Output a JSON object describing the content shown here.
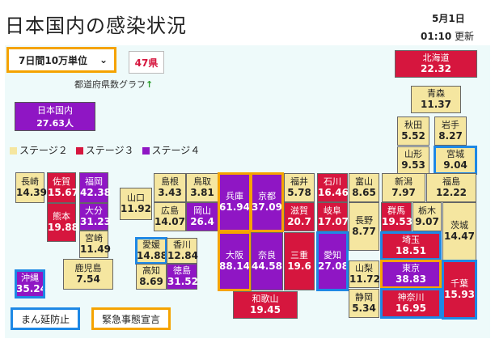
{
  "title": "日本国内の感染状況",
  "date": "5月1日",
  "time": "01:10",
  "updated_suffix": "更新",
  "period_select": "7日間10万単位",
  "pref_count": "47県",
  "graph_link": "都道府県数グラフ",
  "graph_link_arrow": "↑",
  "national": {
    "label": "日本国内",
    "value": "27.63人"
  },
  "legend": [
    {
      "label": "ステージ２",
      "color": "#f5e6a0"
    },
    {
      "label": "ステージ３",
      "color": "#d6163e"
    },
    {
      "label": "ステージ４",
      "color": "#8f16c4"
    }
  ],
  "prefectures": [
    {
      "name": "北海道",
      "value": "22.32",
      "stage": 3
    },
    {
      "name": "青森",
      "value": "11.37",
      "stage": 2
    },
    {
      "name": "秋田",
      "value": "5.52",
      "stage": 2
    },
    {
      "name": "岩手",
      "value": "8.27",
      "stage": 2
    },
    {
      "name": "山形",
      "value": "9.53",
      "stage": 2
    },
    {
      "name": "宮城",
      "value": "9.04",
      "stage": 2
    },
    {
      "name": "長崎",
      "value": "14.39",
      "stage": 2
    },
    {
      "name": "佐賀",
      "value": "15.67",
      "stage": 3
    },
    {
      "name": "福岡",
      "value": "42.38",
      "stage": 4
    },
    {
      "name": "島根",
      "value": "3.43",
      "stage": 2
    },
    {
      "name": "鳥取",
      "value": "3.81",
      "stage": 2
    },
    {
      "name": "山口",
      "value": "11.92",
      "stage": 2
    },
    {
      "name": "広島",
      "value": "14.07",
      "stage": 2
    },
    {
      "name": "岡山",
      "value": "26.4",
      "stage": 4
    },
    {
      "name": "兵庫",
      "value": "61.94",
      "stage": 4
    },
    {
      "name": "京都",
      "value": "37.09",
      "stage": 4
    },
    {
      "name": "福井",
      "value": "5.78",
      "stage": 2
    },
    {
      "name": "石川",
      "value": "16.46",
      "stage": 3
    },
    {
      "name": "富山",
      "value": "8.65",
      "stage": 2
    },
    {
      "name": "新潟",
      "value": "7.97",
      "stage": 2
    },
    {
      "name": "福島",
      "value": "12.22",
      "stage": 2
    },
    {
      "name": "熊本",
      "value": "19.88",
      "stage": 3
    },
    {
      "name": "大分",
      "value": "31.23",
      "stage": 4
    },
    {
      "name": "宮崎",
      "value": "11.49",
      "stage": 2
    },
    {
      "name": "鹿児島",
      "value": "7.54",
      "stage": 2
    },
    {
      "name": "滋賀",
      "value": "20.7",
      "stage": 3
    },
    {
      "name": "岐阜",
      "value": "17.07",
      "stage": 3
    },
    {
      "name": "長野",
      "value": "8.77",
      "stage": 2
    },
    {
      "name": "群馬",
      "value": "19.53",
      "stage": 3
    },
    {
      "name": "栃木",
      "value": "9.07",
      "stage": 2
    },
    {
      "name": "茨城",
      "value": "14.47",
      "stage": 2
    },
    {
      "name": "愛媛",
      "value": "14.88",
      "stage": 2
    },
    {
      "name": "香川",
      "value": "12.84",
      "stage": 2
    },
    {
      "name": "高知",
      "value": "8.69",
      "stage": 2
    },
    {
      "name": "徳島",
      "value": "31.52",
      "stage": 4
    },
    {
      "name": "大阪",
      "value": "88.14",
      "stage": 4
    },
    {
      "name": "奈良",
      "value": "44.58",
      "stage": 4
    },
    {
      "name": "三重",
      "value": "19.6",
      "stage": 3
    },
    {
      "name": "愛知",
      "value": "27.08",
      "stage": 4
    },
    {
      "name": "埼玉",
      "value": "18.51",
      "stage": 3
    },
    {
      "name": "東京",
      "value": "38.83",
      "stage": 4
    },
    {
      "name": "山梨",
      "value": "11.72",
      "stage": 2
    },
    {
      "name": "千葉",
      "value": "15.93",
      "stage": 3
    },
    {
      "name": "静岡",
      "value": "5.34",
      "stage": 2
    },
    {
      "name": "神奈川",
      "value": "16.95",
      "stage": 3
    },
    {
      "name": "沖縄",
      "value": "35.24",
      "stage": 4
    },
    {
      "name": "和歌山",
      "value": "19.45",
      "stage": 3
    }
  ],
  "buttons": {
    "manen": "まん延防止",
    "kinkyu": "緊急事態宣言"
  }
}
